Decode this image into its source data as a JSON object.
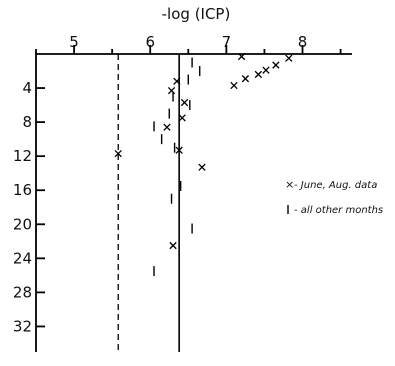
{
  "chart_data": {
    "type": "scatter",
    "title": "",
    "xlabel": "-log (ICP)",
    "ylabel": "",
    "xlim": [
      4.5,
      8.65
    ],
    "ylim": [
      0,
      35
    ],
    "x_ticks": [
      5,
      6,
      7,
      8
    ],
    "y_ticks": [
      4,
      8,
      12,
      16,
      20,
      24,
      28,
      32
    ],
    "x_axis_position": "top",
    "y_axis_inverted": true,
    "grid": false,
    "legend_position": "right",
    "reference_lines": [
      {
        "style": "dashed",
        "x": 5.58
      },
      {
        "style": "solid",
        "x": 6.38
      }
    ],
    "series": [
      {
        "name": "June, Aug. data",
        "marker": "x",
        "points": [
          {
            "x": 7.82,
            "y": 0.5
          },
          {
            "x": 7.65,
            "y": 1.3
          },
          {
            "x": 7.52,
            "y": 1.9
          },
          {
            "x": 7.42,
            "y": 2.4
          },
          {
            "x": 7.25,
            "y": 2.9
          },
          {
            "x": 7.1,
            "y": 3.7
          },
          {
            "x": 7.2,
            "y": 0.3
          },
          {
            "x": 6.35,
            "y": 3.2
          },
          {
            "x": 6.28,
            "y": 4.3
          },
          {
            "x": 6.45,
            "y": 5.7
          },
          {
            "x": 6.42,
            "y": 7.5
          },
          {
            "x": 6.22,
            "y": 8.6
          },
          {
            "x": 6.38,
            "y": 11.3
          },
          {
            "x": 5.58,
            "y": 11.7
          },
          {
            "x": 6.68,
            "y": 13.3
          },
          {
            "x": 6.3,
            "y": 22.5
          }
        ]
      },
      {
        "name": "all other months",
        "marker": "|",
        "points": [
          {
            "x": 6.55,
            "y": 1.0
          },
          {
            "x": 6.65,
            "y": 2.0
          },
          {
            "x": 6.5,
            "y": 3.0
          },
          {
            "x": 6.3,
            "y": 5.0
          },
          {
            "x": 6.52,
            "y": 6.0
          },
          {
            "x": 6.25,
            "y": 7.0
          },
          {
            "x": 6.05,
            "y": 8.5
          },
          {
            "x": 6.15,
            "y": 10.0
          },
          {
            "x": 6.32,
            "y": 11.0
          },
          {
            "x": 6.4,
            "y": 15.5
          },
          {
            "x": 6.28,
            "y": 17.0
          },
          {
            "x": 6.55,
            "y": 20.5
          },
          {
            "x": 6.05,
            "y": 25.5
          }
        ]
      }
    ]
  },
  "legend": {
    "june_aug_label": "- June, Aug. data",
    "other_months_label": "- all other months"
  }
}
